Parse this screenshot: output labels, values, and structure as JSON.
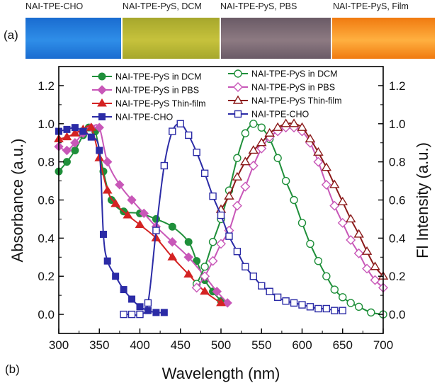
{
  "photos": {
    "panel_label": "(a)",
    "items": [
      {
        "label": "NAI-TPE-CHO",
        "color_a": "#1a6cd0",
        "color_b": "#2f8ee8"
      },
      {
        "label": "NAI-TPE-PyS, DCM",
        "color_a": "#a6a72c",
        "color_b": "#c6c23c"
      },
      {
        "label": "NAI-TPE-PyS, PBS",
        "color_a": "#6a5a66",
        "color_b": "#8d7a82"
      },
      {
        "label": "NAI-TPE-PyS, Film",
        "color_a": "#f07a10",
        "color_b": "#ffb040"
      }
    ]
  },
  "chart_panel_label": "(b)",
  "chart_data": {
    "type": "line",
    "xlabel": "Wavelength (nm)",
    "ylabel": "Absorbance (a.u.)",
    "y2label": "Fl Intensity (a.u.)",
    "xlim": [
      300,
      700
    ],
    "ylim": [
      -0.1,
      1.3
    ],
    "y2lim": [
      -0.1,
      1.3
    ],
    "xticks": [
      "300",
      "350",
      "400",
      "450",
      "500",
      "550",
      "600",
      "650",
      "700"
    ],
    "yticks": [
      "0.0",
      "0.2",
      "0.4",
      "0.6",
      "0.8",
      "1.0",
      "1.2"
    ],
    "grid": false,
    "legend_left": "upper-left",
    "legend_right": "upper-right",
    "series": [
      {
        "name": "NAI-TPE-PyS in DCM",
        "axis": "left",
        "kind": "absorption",
        "color": "#1f8f3a",
        "marker": "circle-filled",
        "x": [
          300,
          310,
          320,
          330,
          337,
          345,
          355,
          365,
          380,
          400,
          420,
          440,
          460,
          470,
          480,
          490,
          500
        ],
        "y": [
          0.75,
          0.8,
          0.86,
          0.94,
          0.98,
          0.96,
          0.75,
          0.6,
          0.54,
          0.53,
          0.5,
          0.46,
          0.38,
          0.28,
          0.18,
          0.12,
          0.07
        ]
      },
      {
        "name": "NAI-TPE-PyS in PBS",
        "axis": "left",
        "kind": "absorption",
        "color": "#c857b8",
        "marker": "diamond-filled",
        "x": [
          300,
          310,
          320,
          330,
          340,
          350,
          360,
          375,
          390,
          405,
          420,
          440,
          460,
          480,
          495,
          508
        ],
        "y": [
          0.88,
          0.86,
          0.9,
          0.95,
          0.98,
          0.98,
          0.8,
          0.68,
          0.6,
          0.53,
          0.46,
          0.38,
          0.3,
          0.2,
          0.12,
          0.06
        ]
      },
      {
        "name": "NAI-TPE-PyS Thin-film",
        "axis": "left",
        "kind": "absorption",
        "color": "#d42323",
        "marker": "triangle-filled",
        "x": [
          300,
          310,
          320,
          330,
          340,
          350,
          360,
          370,
          385,
          400,
          420,
          440,
          460,
          480,
          500
        ],
        "y": [
          0.92,
          0.93,
          0.95,
          0.97,
          0.98,
          0.82,
          0.65,
          0.58,
          0.52,
          0.47,
          0.4,
          0.3,
          0.21,
          0.12,
          0.06
        ]
      },
      {
        "name": "NAI-TPE-CHO",
        "axis": "left",
        "kind": "absorption",
        "color": "#2b2ba6",
        "marker": "square-filled",
        "x": [
          300,
          310,
          320,
          330,
          340,
          350,
          355,
          360,
          370,
          380,
          390,
          400,
          410,
          420,
          430
        ],
        "y": [
          0.96,
          0.97,
          0.98,
          0.96,
          0.93,
          0.86,
          0.42,
          0.28,
          0.2,
          0.13,
          0.08,
          0.04,
          0.02,
          0.01,
          0.01
        ]
      },
      {
        "name": "NAI-TPE-PyS in DCM",
        "axis": "right",
        "kind": "emission",
        "color": "#1f8f3a",
        "marker": "circle-open",
        "x": [
          470,
          480,
          490,
          500,
          510,
          520,
          530,
          540,
          550,
          560,
          570,
          580,
          590,
          600,
          610,
          620,
          630,
          640,
          650,
          660,
          670,
          685,
          700
        ],
        "y": [
          0.16,
          0.25,
          0.38,
          0.5,
          0.65,
          0.82,
          0.95,
          1.0,
          0.98,
          0.92,
          0.82,
          0.7,
          0.6,
          0.48,
          0.37,
          0.28,
          0.2,
          0.13,
          0.09,
          0.06,
          0.04,
          0.01,
          0.0
        ]
      },
      {
        "name": "NAI-TPE-PyS in PBS",
        "axis": "right",
        "kind": "emission",
        "color": "#c857b8",
        "marker": "diamond-open",
        "x": [
          470,
          480,
          490,
          500,
          510,
          520,
          530,
          540,
          550,
          560,
          570,
          580,
          590,
          600,
          610,
          620,
          630,
          640,
          650,
          660,
          670,
          680,
          690,
          700
        ],
        "y": [
          0.14,
          0.2,
          0.28,
          0.37,
          0.44,
          0.57,
          0.67,
          0.78,
          0.87,
          0.93,
          0.96,
          0.98,
          0.98,
          0.96,
          0.9,
          0.8,
          0.68,
          0.57,
          0.48,
          0.39,
          0.32,
          0.24,
          0.18,
          0.14
        ]
      },
      {
        "name": "NAI-TPE-PyS Thin-film",
        "axis": "right",
        "kind": "emission",
        "color": "#8b1a1a",
        "marker": "triangle-open",
        "x": [
          500,
          510,
          520,
          530,
          540,
          550,
          560,
          570,
          580,
          590,
          600,
          610,
          620,
          630,
          640,
          650,
          660,
          670,
          680,
          690,
          700
        ],
        "y": [
          0.55,
          0.62,
          0.72,
          0.8,
          0.86,
          0.9,
          0.95,
          0.98,
          1.0,
          1.0,
          0.98,
          0.92,
          0.85,
          0.77,
          0.68,
          0.59,
          0.5,
          0.42,
          0.33,
          0.25,
          0.2
        ]
      },
      {
        "name": "NAI-TPE-CHO",
        "axis": "right",
        "kind": "emission",
        "color": "#2b2ba6",
        "marker": "square-open",
        "x": [
          380,
          390,
          400,
          410,
          420,
          430,
          440,
          450,
          460,
          470,
          480,
          490,
          500,
          510,
          520,
          530,
          540,
          550,
          560,
          570,
          580,
          590,
          600,
          610,
          620,
          630,
          640,
          650
        ],
        "y": [
          0.0,
          0.0,
          0.0,
          0.06,
          0.44,
          0.78,
          0.96,
          1.0,
          0.94,
          0.85,
          0.74,
          0.62,
          0.52,
          0.41,
          0.33,
          0.25,
          0.2,
          0.15,
          0.12,
          0.09,
          0.07,
          0.06,
          0.05,
          0.04,
          0.03,
          0.03,
          0.02,
          0.02
        ]
      }
    ]
  }
}
